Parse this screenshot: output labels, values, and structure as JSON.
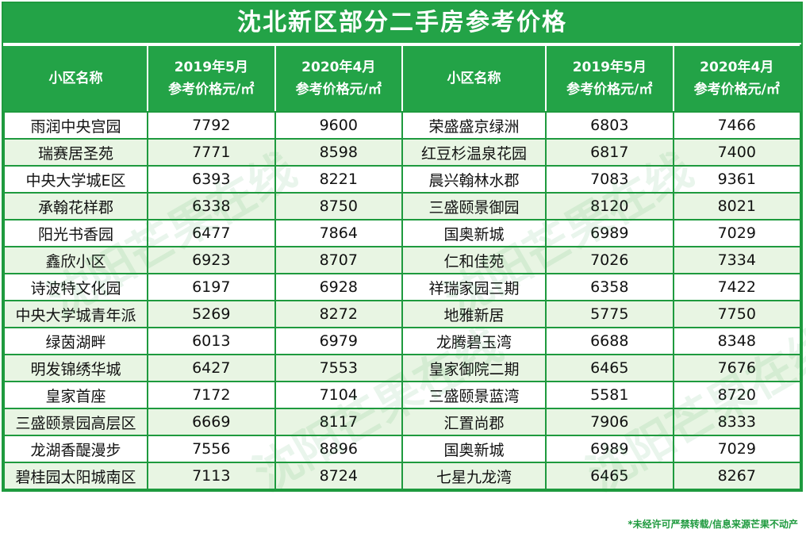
{
  "title": "沈北新区部分二手房参考价格",
  "headers": {
    "name": "小区名称",
    "may2019_line1": "2019年5月",
    "may2019_line2": "参考价格元/㎡",
    "apr2020_line1": "2020年4月",
    "apr2020_line2": "参考价格元/㎡"
  },
  "rows": [
    {
      "n1": "雨润中央宫园",
      "a1": "7792",
      "b1": "9600",
      "n2": "荣盛盛京绿洲",
      "a2": "6803",
      "b2": "7466"
    },
    {
      "n1": "瑞赛居圣苑",
      "a1": "7771",
      "b1": "8598",
      "n2": "红豆杉温泉花园",
      "a2": "6817",
      "b2": "7400"
    },
    {
      "n1": "中央大学城E区",
      "a1": "6393",
      "b1": "8221",
      "n2": "晨兴翰林水郡",
      "a2": "7083",
      "b2": "9361"
    },
    {
      "n1": "承翰花样郡",
      "a1": "6338",
      "b1": "8750",
      "n2": "三盛颐景御园",
      "a2": "8120",
      "b2": "8021"
    },
    {
      "n1": "阳光书香园",
      "a1": "6477",
      "b1": "7864",
      "n2": "国奥新城",
      "a2": "6989",
      "b2": "7029"
    },
    {
      "n1": "鑫欣小区",
      "a1": "6923",
      "b1": "8707",
      "n2": "仁和佳苑",
      "a2": "7026",
      "b2": "7334"
    },
    {
      "n1": "诗波特文化园",
      "a1": "6197",
      "b1": "6928",
      "n2": "祥瑞家园三期",
      "a2": "6358",
      "b2": "7422"
    },
    {
      "n1": "中央大学城青年派",
      "a1": "5269",
      "b1": "8272",
      "n2": "地雅新居",
      "a2": "5775",
      "b2": "7750"
    },
    {
      "n1": "绿茵湖畔",
      "a1": "6013",
      "b1": "6979",
      "n2": "龙腾碧玉湾",
      "a2": "6688",
      "b2": "8348"
    },
    {
      "n1": "明发锦绣华城",
      "a1": "6427",
      "b1": "7553",
      "n2": "皇家御院二期",
      "a2": "6465",
      "b2": "7676"
    },
    {
      "n1": "皇家首座",
      "a1": "7172",
      "b1": "7104",
      "n2": "三盛颐景蓝湾",
      "a2": "5581",
      "b2": "8720"
    },
    {
      "n1": "三盛颐景园高层区",
      "a1": "6669",
      "b1": "8117",
      "n2": "汇置尚郡",
      "a2": "7906",
      "b2": "8333"
    },
    {
      "n1": "龙湖香醍漫步",
      "a1": "7556",
      "b1": "8896",
      "n2": "国奥新城",
      "a2": "6989",
      "b2": "7029"
    },
    {
      "n1": "碧桂园太阳城南区",
      "a1": "7113",
      "b1": "8724",
      "n2": "七星九龙湾",
      "a2": "6465",
      "b2": "8267"
    }
  ],
  "footer": "*未经许可严禁转载/信息来源芒果不动产",
  "watermark": "沈阳芒果在线",
  "colors": {
    "header_green": "#23a347",
    "row_alt": "#e8f5e3",
    "border": "#1e9a3e"
  }
}
